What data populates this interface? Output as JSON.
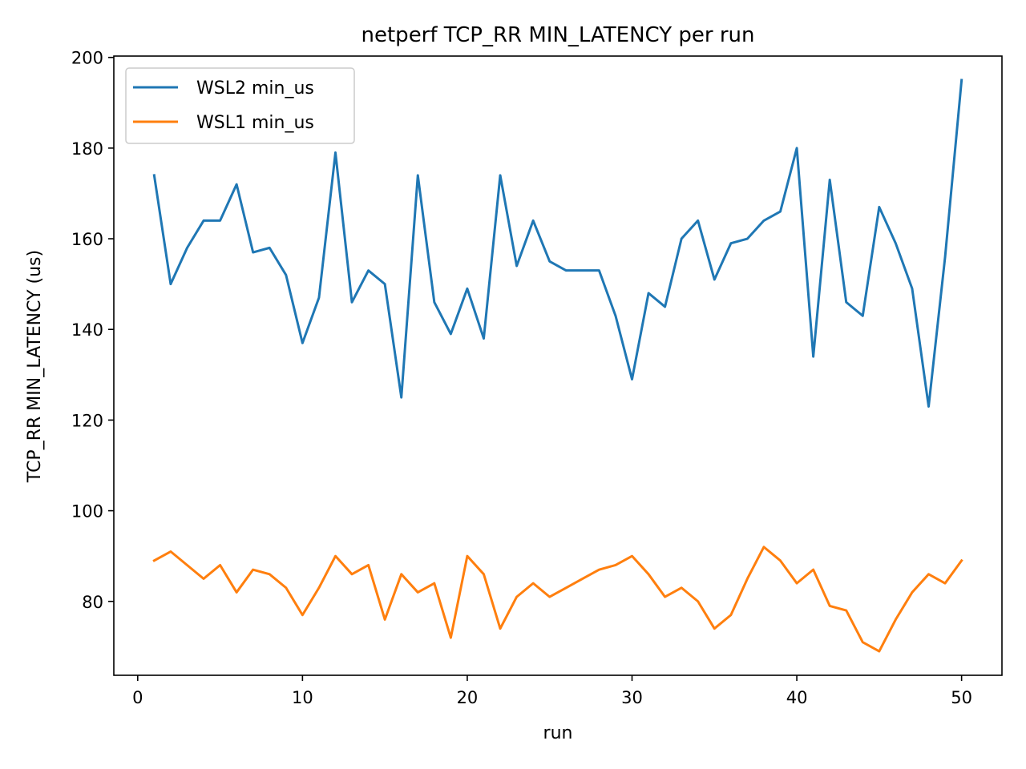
{
  "chart_data": {
    "type": "line",
    "title": "netperf TCP_RR MIN_LATENCY per run",
    "xlabel": "run",
    "ylabel": "TCP_RR MIN_LATENCY (us)",
    "xlim": [
      -1.45,
      52.45
    ],
    "ylim": [
      63.7,
      200.3
    ],
    "xticks": [
      0,
      10,
      20,
      30,
      40,
      50
    ],
    "yticks": [
      80,
      100,
      120,
      140,
      160,
      180,
      200
    ],
    "grid": false,
    "legend_position": "top-left",
    "x": [
      1,
      2,
      3,
      4,
      5,
      6,
      7,
      8,
      9,
      10,
      11,
      12,
      13,
      14,
      15,
      16,
      17,
      18,
      19,
      20,
      21,
      22,
      23,
      24,
      25,
      26,
      27,
      28,
      29,
      30,
      31,
      32,
      33,
      34,
      35,
      36,
      37,
      38,
      39,
      40,
      41,
      42,
      43,
      44,
      45,
      46,
      47,
      48,
      49,
      50
    ],
    "series": [
      {
        "name": "WSL2 min_us",
        "color": "#1f77b4",
        "values": [
          174,
          150,
          158,
          164,
          164,
          172,
          157,
          158,
          152,
          137,
          147,
          179,
          146,
          153,
          150,
          125,
          174,
          146,
          139,
          149,
          138,
          174,
          154,
          164,
          155,
          153,
          153,
          153,
          143,
          129,
          148,
          145,
          160,
          164,
          151,
          159,
          160,
          164,
          166,
          180,
          134,
          173,
          146,
          143,
          167,
          159,
          149,
          123,
          156,
          195
        ]
      },
      {
        "name": "WSL1 min_us",
        "color": "#ff7f0e",
        "values": [
          89,
          91,
          88,
          85,
          88,
          82,
          87,
          86,
          83,
          77,
          83,
          90,
          86,
          88,
          76,
          86,
          82,
          84,
          72,
          90,
          86,
          74,
          81,
          84,
          81,
          83,
          85,
          87,
          88,
          90,
          86,
          81,
          83,
          80,
          74,
          77,
          85,
          92,
          89,
          84,
          87,
          79,
          78,
          71,
          69,
          76,
          82,
          86,
          84,
          89
        ]
      }
    ]
  }
}
